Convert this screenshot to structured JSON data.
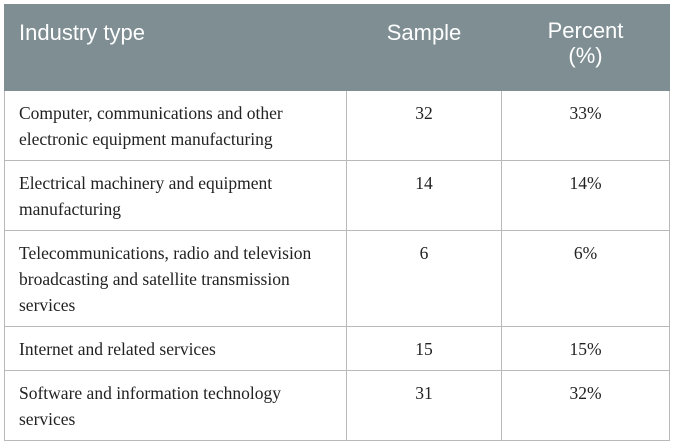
{
  "table": {
    "headers": {
      "industry": "Industry type",
      "sample": "Sample",
      "percent_line1": "Percent",
      "percent_line2": "(%)"
    },
    "rows": [
      {
        "industry": "Computer, communications and other electronic equipment manufacturing",
        "sample": "32",
        "percent": "33%"
      },
      {
        "industry": "Electrical machinery and equipment manufacturing",
        "sample": "14",
        "percent": "14%"
      },
      {
        "industry": "Telecommunications, radio and television broadcasting and satellite transmission services",
        "sample": "6",
        "percent": "6%"
      },
      {
        "industry": "Internet and related services",
        "sample": "15",
        "percent": "15%"
      },
      {
        "industry": "Software and information technology services",
        "sample": "31",
        "percent": "32%"
      }
    ]
  },
  "colors": {
    "header_bg": "#7e8e93",
    "header_text": "#ffffff",
    "border": "#b9b9b9"
  }
}
